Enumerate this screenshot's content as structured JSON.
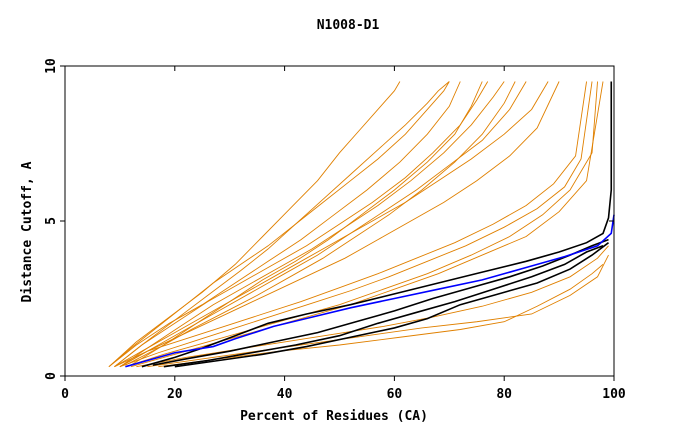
{
  "chart_data": {
    "type": "line",
    "title": "N1008-D1",
    "xlabel": "Percent of Residues (CA)",
    "ylabel": "Distance Cutoff, A",
    "xlim": [
      0,
      100
    ],
    "ylim": [
      0,
      10
    ],
    "xticks": [
      0,
      20,
      40,
      60,
      80,
      100
    ],
    "yticks": [
      0,
      5,
      10
    ],
    "colors": {
      "highlight": "#0000ff",
      "reference": "#000000",
      "others": "#e08000"
    },
    "series": [
      {
        "name": "highlighted",
        "color": "blue",
        "x": [
          11,
          15,
          20,
          27,
          31,
          38,
          45,
          52,
          60,
          68,
          76,
          84,
          91,
          97,
          99.5,
          100
        ],
        "y": [
          0.3,
          0.5,
          0.75,
          0.95,
          1.2,
          1.6,
          1.9,
          2.2,
          2.5,
          2.8,
          3.1,
          3.5,
          3.85,
          4.2,
          4.6,
          5.2
        ]
      },
      {
        "name": "black-1",
        "color": "black",
        "x": [
          14,
          20,
          25,
          31,
          37,
          44,
          52,
          60,
          68,
          76,
          84,
          90,
          95,
          98,
          99,
          99.5,
          99.5
        ],
        "y": [
          0.3,
          0.6,
          0.9,
          1.3,
          1.7,
          2.0,
          2.3,
          2.65,
          3.0,
          3.35,
          3.7,
          4.0,
          4.3,
          4.6,
          5.1,
          6.0,
          9.5
        ]
      },
      {
        "name": "black-2",
        "color": "black",
        "x": [
          16,
          22,
          30,
          38,
          46,
          53,
          60,
          67,
          74,
          81,
          87,
          92,
          96,
          99
        ],
        "y": [
          0.35,
          0.55,
          0.8,
          1.1,
          1.4,
          1.75,
          2.1,
          2.5,
          2.85,
          3.2,
          3.55,
          3.9,
          4.2,
          4.4
        ]
      },
      {
        "name": "black-3",
        "color": "black",
        "x": [
          18,
          26,
          34,
          42,
          50,
          57,
          64,
          71,
          78,
          85,
          91,
          95,
          98
        ],
        "y": [
          0.3,
          0.5,
          0.75,
          1.0,
          1.3,
          1.7,
          2.05,
          2.4,
          2.8,
          3.2,
          3.6,
          4.0,
          4.2
        ]
      },
      {
        "name": "black-4",
        "color": "black",
        "x": [
          20,
          28,
          36,
          44,
          52,
          60,
          66,
          72,
          79,
          86,
          92,
          96,
          99
        ],
        "y": [
          0.3,
          0.5,
          0.7,
          0.95,
          1.25,
          1.55,
          1.85,
          2.3,
          2.65,
          3.0,
          3.45,
          3.9,
          4.3
        ]
      },
      {
        "name": "orange-01",
        "color": "orange",
        "x": [
          9,
          14,
          20,
          26,
          32,
          38,
          44,
          50,
          56,
          62,
          68,
          74,
          80,
          85,
          88
        ],
        "y": [
          0.3,
          0.8,
          1.4,
          2.0,
          2.6,
          3.2,
          3.8,
          4.4,
          5.0,
          5.6,
          6.3,
          7.0,
          7.8,
          8.6,
          9.5
        ]
      },
      {
        "name": "orange-02",
        "color": "orange",
        "x": [
          10,
          16,
          22,
          28,
          34,
          40,
          46,
          52,
          58,
          64,
          70,
          76,
          81,
          84
        ],
        "y": [
          0.3,
          0.9,
          1.5,
          2.1,
          2.7,
          3.3,
          3.9,
          4.6,
          5.3,
          6.0,
          6.8,
          7.6,
          8.6,
          9.5
        ]
      },
      {
        "name": "orange-03",
        "color": "orange",
        "x": [
          11,
          17,
          23,
          29,
          35,
          41,
          47,
          53,
          59,
          65,
          71,
          76,
          80,
          82
        ],
        "y": [
          0.35,
          0.9,
          1.5,
          2.05,
          2.6,
          3.2,
          3.8,
          4.5,
          5.2,
          6.0,
          6.9,
          7.8,
          8.8,
          9.5
        ]
      },
      {
        "name": "orange-04",
        "color": "orange",
        "x": [
          10,
          15,
          21,
          27,
          33,
          39,
          45,
          51,
          57,
          63,
          69,
          74,
          78,
          80
        ],
        "y": [
          0.3,
          0.9,
          1.6,
          2.3,
          2.9,
          3.5,
          4.1,
          4.8,
          5.5,
          6.3,
          7.2,
          8.1,
          9.0,
          9.5
        ]
      },
      {
        "name": "orange-05",
        "color": "orange",
        "x": [
          9,
          14,
          20,
          26,
          32,
          38,
          44,
          50,
          56,
          62,
          67,
          72,
          75,
          77
        ],
        "y": [
          0.3,
          1.0,
          1.7,
          2.4,
          3.0,
          3.6,
          4.2,
          4.9,
          5.6,
          6.4,
          7.2,
          8.1,
          8.9,
          9.5
        ]
      },
      {
        "name": "orange-06",
        "color": "orange",
        "x": [
          12,
          18,
          24,
          30,
          36,
          42,
          48,
          54,
          60,
          66,
          71,
          74,
          76
        ],
        "y": [
          0.35,
          1.0,
          1.7,
          2.4,
          3.1,
          3.7,
          4.4,
          5.2,
          6.0,
          6.9,
          7.8,
          8.7,
          9.5
        ]
      },
      {
        "name": "orange-07",
        "color": "orange",
        "x": [
          8,
          13,
          19,
          25,
          31,
          37,
          43,
          49,
          55,
          61,
          66,
          70,
          72
        ],
        "y": [
          0.3,
          1.0,
          1.7,
          2.3,
          3.0,
          3.7,
          4.4,
          5.2,
          6.0,
          6.9,
          7.8,
          8.7,
          9.5
        ]
      },
      {
        "name": "orange-08",
        "color": "orange",
        "x": [
          9,
          14,
          20,
          26,
          32,
          37,
          42,
          47,
          52,
          57,
          62,
          66,
          68,
          70
        ],
        "y": [
          0.3,
          1.0,
          1.8,
          2.6,
          3.4,
          4.1,
          4.9,
          5.7,
          6.5,
          7.3,
          8.1,
          8.8,
          9.2,
          9.5
        ]
      },
      {
        "name": "orange-09",
        "color": "orange",
        "x": [
          8,
          13,
          19,
          25,
          31,
          36,
          41,
          46,
          50,
          54,
          58,
          60,
          61
        ],
        "y": [
          0.3,
          1.1,
          1.9,
          2.7,
          3.6,
          4.5,
          5.4,
          6.3,
          7.2,
          8.0,
          8.8,
          9.2,
          9.5
        ]
      },
      {
        "name": "orange-10",
        "color": "orange",
        "x": [
          10,
          15,
          21,
          27,
          33,
          39,
          45,
          51,
          57,
          63,
          69,
          75,
          81,
          86,
          90
        ],
        "y": [
          0.3,
          0.8,
          1.3,
          1.8,
          2.3,
          2.8,
          3.3,
          3.8,
          4.4,
          5.0,
          5.6,
          6.3,
          7.1,
          8.0,
          9.5
        ]
      },
      {
        "name": "orange-11",
        "color": "orange",
        "x": [
          9,
          15,
          22,
          29,
          36,
          43,
          50,
          57,
          64,
          71,
          78,
          84,
          89,
          93,
          95
        ],
        "y": [
          0.3,
          0.8,
          1.2,
          1.6,
          2.0,
          2.4,
          2.85,
          3.3,
          3.8,
          4.3,
          4.9,
          5.5,
          6.2,
          7.1,
          9.5
        ]
      },
      {
        "name": "orange-12",
        "color": "orange",
        "x": [
          10,
          17,
          24,
          31,
          38,
          45,
          52,
          59,
          66,
          73,
          80,
          86,
          91,
          94,
          96
        ],
        "y": [
          0.3,
          0.75,
          1.15,
          1.55,
          1.95,
          2.35,
          2.75,
          3.2,
          3.7,
          4.2,
          4.8,
          5.4,
          6.1,
          7.0,
          9.5
        ]
      },
      {
        "name": "orange-13",
        "color": "orange",
        "x": [
          11,
          18,
          26,
          34,
          42,
          50,
          58,
          66,
          74,
          81,
          87,
          92,
          96,
          97
        ],
        "y": [
          0.3,
          0.7,
          1.1,
          1.5,
          1.9,
          2.3,
          2.8,
          3.3,
          3.9,
          4.5,
          5.2,
          6.0,
          7.2,
          9.5
        ]
      },
      {
        "name": "orange-14",
        "color": "orange",
        "x": [
          12,
          20,
          28,
          36,
          44,
          52,
          60,
          68,
          76,
          84,
          90,
          95,
          98
        ],
        "y": [
          0.3,
          0.7,
          1.1,
          1.5,
          1.9,
          2.3,
          2.8,
          3.3,
          3.9,
          4.5,
          5.3,
          6.3,
          9.5
        ]
      },
      {
        "name": "orange-15",
        "color": "orange",
        "x": [
          13,
          22,
          31,
          40,
          49,
          58,
          67,
          76,
          85,
          92,
          97,
          99
        ],
        "y": [
          0.3,
          0.6,
          0.85,
          1.1,
          1.35,
          1.6,
          1.9,
          2.25,
          2.7,
          3.2,
          3.8,
          4.2
        ]
      },
      {
        "name": "orange-16",
        "color": "orange",
        "x": [
          15,
          25,
          35,
          45,
          55,
          65,
          75,
          85,
          92,
          97,
          99
        ],
        "y": [
          0.3,
          0.55,
          0.8,
          1.05,
          1.3,
          1.55,
          1.75,
          2.0,
          2.6,
          3.2,
          3.9
        ]
      },
      {
        "name": "orange-17",
        "color": "orange",
        "x": [
          17,
          28,
          39,
          50,
          61,
          72,
          80,
          86,
          92,
          96,
          98
        ],
        "y": [
          0.3,
          0.55,
          0.8,
          1.0,
          1.25,
          1.5,
          1.75,
          2.25,
          2.8,
          3.3,
          3.6
        ]
      },
      {
        "name": "orange-18",
        "color": "orange",
        "x": [
          8,
          12,
          17,
          22,
          27,
          32,
          37,
          42,
          47,
          52,
          57,
          62,
          66,
          69,
          70
        ],
        "y": [
          0.3,
          0.9,
          1.6,
          2.3,
          3.0,
          3.6,
          4.2,
          4.9,
          5.6,
          6.3,
          7.0,
          7.8,
          8.6,
          9.2,
          9.5
        ]
      }
    ]
  }
}
